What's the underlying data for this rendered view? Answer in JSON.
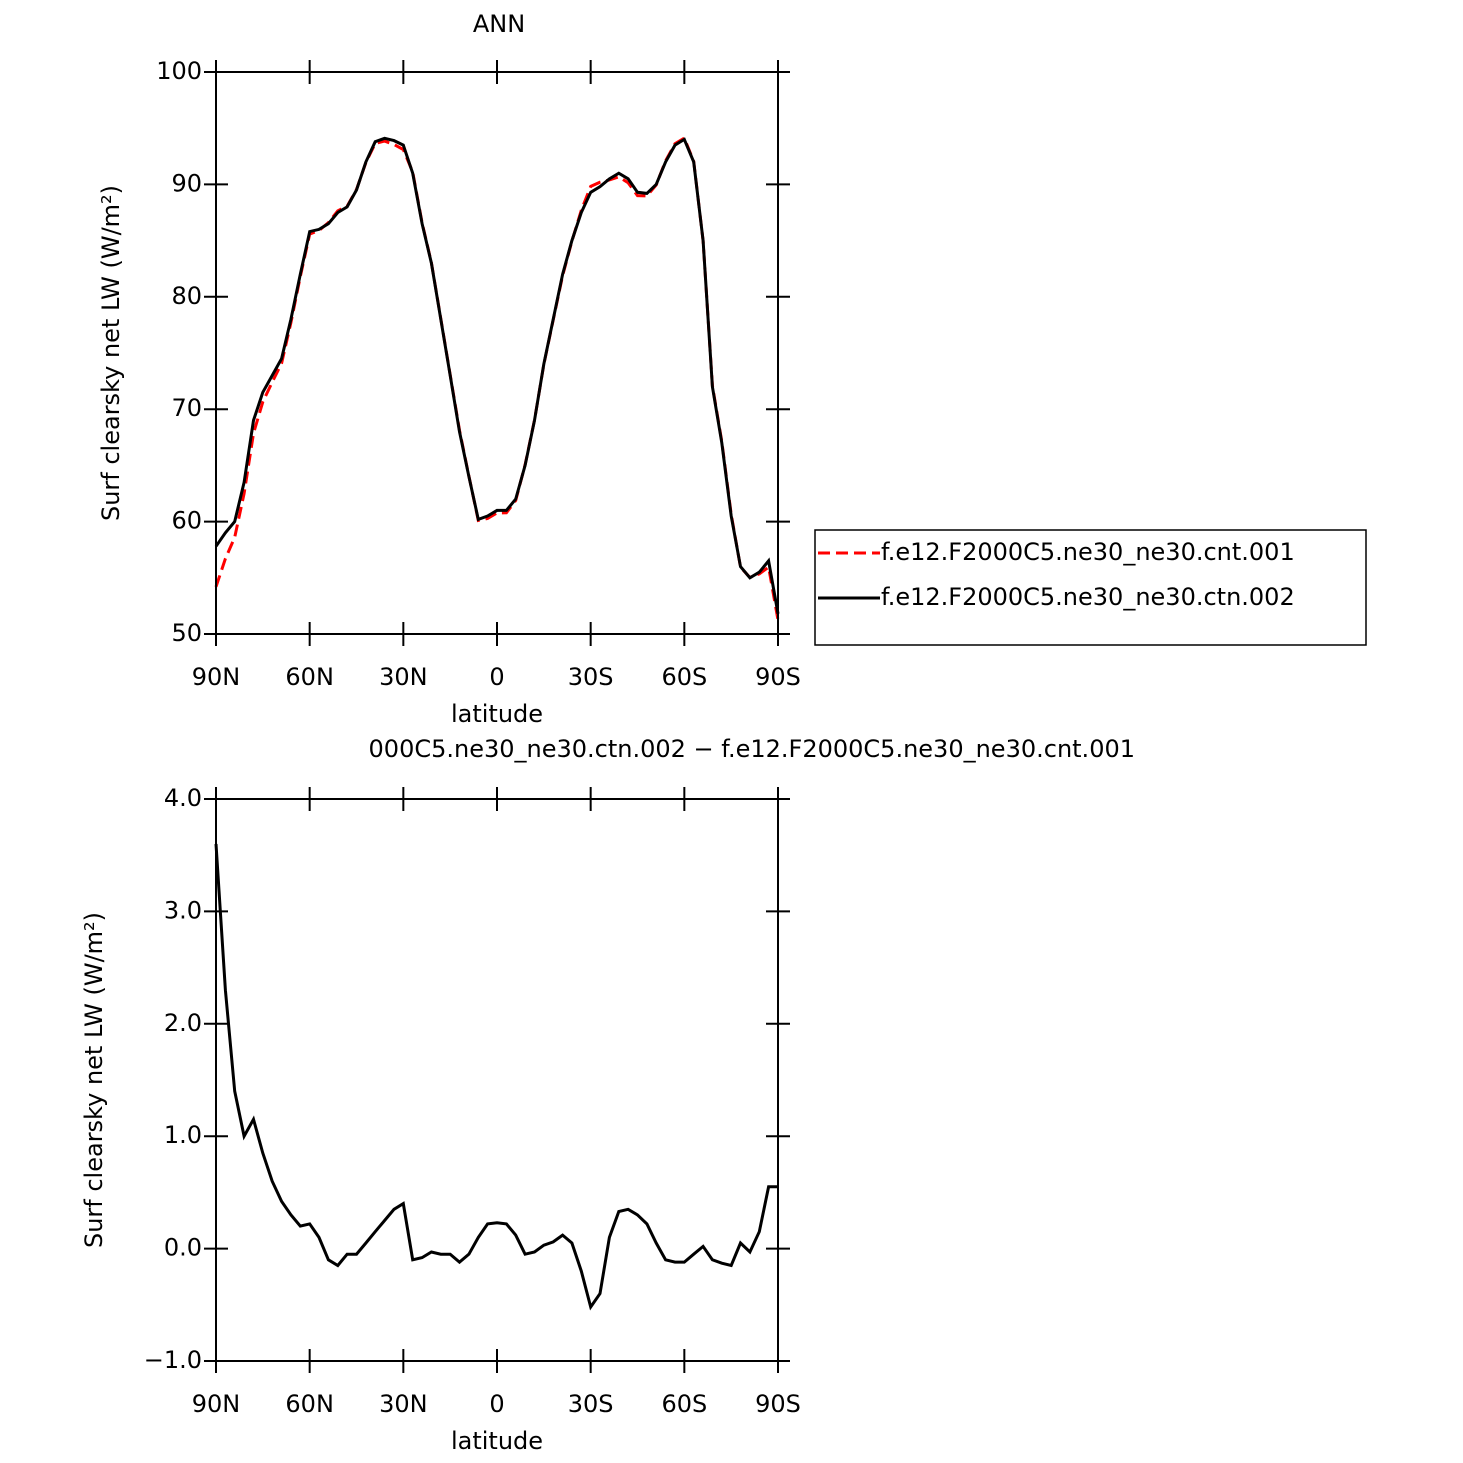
{
  "chart_data": [
    {
      "type": "line",
      "title": "ANN",
      "xlabel": "latitude",
      "ylabel": "Surf clearsky net LW (W/m²)",
      "x": [
        90,
        87,
        84,
        81,
        78,
        75,
        72,
        69,
        66,
        63,
        60,
        57,
        54,
        51,
        48,
        45,
        42,
        39,
        36,
        33,
        30,
        27,
        24,
        21,
        18,
        15,
        12,
        9,
        6,
        3,
        0,
        -3,
        -6,
        -9,
        -12,
        -15,
        -18,
        -21,
        -24,
        -27,
        -30,
        -33,
        -36,
        -39,
        -42,
        -45,
        -48,
        -51,
        -54,
        -57,
        -60,
        -63,
        -66,
        -69,
        -72,
        -75,
        -78,
        -81,
        -84,
        -87,
        -90
      ],
      "xlim": [
        90,
        -90
      ],
      "xticks": [
        {
          "value": 90,
          "label": "90N"
        },
        {
          "value": 60,
          "label": "60N"
        },
        {
          "value": 30,
          "label": "30N"
        },
        0,
        {
          "value": -30,
          "label": "30S"
        },
        {
          "value": -60,
          "label": "60S"
        },
        {
          "value": -90,
          "label": "90S"
        }
      ],
      "ylim": [
        50,
        100
      ],
      "yticks": [
        50,
        60,
        70,
        80,
        90,
        100
      ],
      "legend": "right",
      "series": [
        {
          "name": "f.e12.F2000C5.ne30_ne30.cnt.001",
          "color": "#ff0000",
          "dash": true,
          "values": [
            54.2,
            56.7,
            58.6,
            62.5,
            67.85,
            70.65,
            72.4,
            74.08,
            77.7,
            81.8,
            85.58,
            85.9,
            86.6,
            87.65,
            88.05,
            89.55,
            91.95,
            93.65,
            93.85,
            93.55,
            93.1,
            91.1,
            86.58,
            83.03,
            78.05,
            73.05,
            68.12,
            64.05,
            60.1,
            60.28,
            60.77,
            60.78,
            61.88,
            65.05,
            69.03,
            73.97,
            77.94,
            81.88,
            84.95,
            87.7,
            89.82,
            90.2,
            90.4,
            90.67,
            90.15,
            89.0,
            88.98,
            89.95,
            92.1,
            93.62,
            94.12,
            92.05,
            84.98,
            72.1,
            67.13,
            60.65,
            55.95,
            55.03,
            55.35,
            55.95,
            51.25
          ]
        },
        {
          "name": "f.e12.F2000C5.ne30_ne30.ctn.002",
          "color": "#000000",
          "dash": false,
          "values": [
            57.8,
            59,
            60,
            63.5,
            69,
            71.5,
            73,
            74.5,
            78,
            82,
            85.8,
            86,
            86.5,
            87.5,
            88,
            89.5,
            92,
            93.8,
            94.1,
            93.9,
            93.5,
            91,
            86.5,
            83,
            78,
            73,
            68,
            64,
            60.2,
            60.5,
            61,
            61,
            62,
            65,
            69,
            74,
            78,
            82,
            85,
            87.5,
            89.3,
            89.8,
            90.5,
            91,
            90.5,
            89.3,
            89.2,
            90,
            92,
            93.5,
            94,
            92,
            85,
            72,
            67,
            60.5,
            56,
            55,
            55.5,
            56.5,
            51.8
          ]
        }
      ]
    },
    {
      "type": "line",
      "title": "000C5.ne30_ne30.ctn.002 − f.e12.F2000C5.ne30_ne30.cnt.001",
      "xlabel": "latitude",
      "ylabel": "Surf clearsky net LW (W/m²)",
      "x": [
        90,
        87,
        84,
        81,
        78,
        75,
        72,
        69,
        66,
        63,
        60,
        57,
        54,
        51,
        48,
        45,
        42,
        39,
        36,
        33,
        30,
        27,
        24,
        21,
        18,
        15,
        12,
        9,
        6,
        3,
        0,
        -3,
        -6,
        -9,
        -12,
        -15,
        -18,
        -21,
        -24,
        -27,
        -30,
        -33,
        -36,
        -39,
        -42,
        -45,
        -48,
        -51,
        -54,
        -57,
        -60,
        -63,
        -66,
        -69,
        -72,
        -75,
        -78,
        -81,
        -84,
        -87,
        -90
      ],
      "xlim": [
        90,
        -90
      ],
      "xticks": [
        {
          "value": 90,
          "label": "90N"
        },
        {
          "value": 60,
          "label": "60N"
        },
        {
          "value": 30,
          "label": "30N"
        },
        0,
        {
          "value": -30,
          "label": "30S"
        },
        {
          "value": -60,
          "label": "60S"
        },
        {
          "value": -90,
          "label": "90S"
        }
      ],
      "ylim": [
        -1,
        4
      ],
      "yticks": [
        {
          "value": -1,
          "label": "−1.0"
        },
        {
          "value": 0,
          "label": "0.0"
        },
        {
          "value": 1,
          "label": "1.0"
        },
        {
          "value": 2,
          "label": "2.0"
        },
        {
          "value": 3,
          "label": "3.0"
        },
        {
          "value": 4,
          "label": "4.0"
        }
      ],
      "series": [
        {
          "color": "#000000",
          "dash": false,
          "values": [
            3.6,
            2.3,
            1.4,
            1.0,
            1.15,
            0.85,
            0.6,
            0.42,
            0.3,
            0.2,
            0.22,
            0.1,
            -0.1,
            -0.15,
            -0.05,
            -0.05,
            0.05,
            0.15,
            0.25,
            0.35,
            0.4,
            -0.1,
            -0.08,
            -0.03,
            -0.05,
            -0.05,
            -0.12,
            -0.05,
            0.1,
            0.22,
            0.23,
            0.22,
            0.12,
            -0.05,
            -0.03,
            0.03,
            0.06,
            0.12,
            0.05,
            -0.2,
            -0.52,
            -0.4,
            0.1,
            0.33,
            0.35,
            0.3,
            0.22,
            0.05,
            -0.1,
            -0.12,
            -0.12,
            -0.05,
            0.02,
            -0.1,
            -0.13,
            -0.15,
            0.05,
            -0.03,
            0.15,
            0.55,
            0.55
          ]
        }
      ]
    }
  ]
}
